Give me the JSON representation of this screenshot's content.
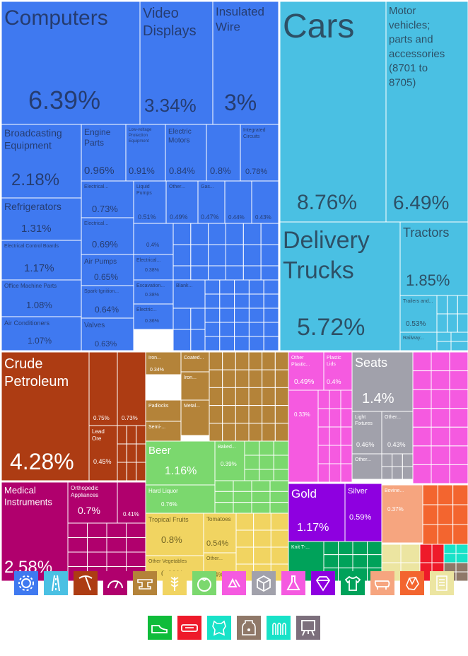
{
  "chart_data": {
    "type": "treemap",
    "title": "",
    "colors": {
      "machines": "#3f79f0",
      "transportation": "#4ac0e3",
      "minerals": "#ad3c13",
      "instruments": "#b0006d",
      "metals": "#b48339",
      "foodstuffs": "#7bd86e",
      "foodstuffs_dark": "#6fd15f",
      "vegetable": "#f1d461",
      "chemicals": "#f55ae0",
      "miscellaneous": "#a1a1ab",
      "precious": "#8e00e0",
      "textiles": "#00a25a",
      "animal": "#f6a57f",
      "stone": "#f3652f",
      "paper": "#ece5a1",
      "footwear": "#0fbc3a",
      "plastics": "#ee1a2a",
      "hides": "#18e2c8",
      "weapons": "#8f7868",
      "arts": "#7c6f7c",
      "mosaic_cream": "#ece8a8"
    },
    "tiles": [
      {
        "label": "Computers",
        "value": "6.39%",
        "group": "machines"
      },
      {
        "label": "Video Displays",
        "value": "3.34%",
        "group": "machines"
      },
      {
        "label": "Insulated Wire",
        "value": "3%",
        "group": "machines"
      },
      {
        "label": "Broadcasting Equipment",
        "value": "2.18%",
        "group": "machines"
      },
      {
        "label": "Engine Parts",
        "value": "0.96%",
        "group": "machines"
      },
      {
        "label": "Low-voltage Protection Equipment",
        "value": "0.91%",
        "group": "machines"
      },
      {
        "label": "Electric Motors",
        "value": "0.84%",
        "group": "machines"
      },
      {
        "label": "",
        "value": "0.8%",
        "group": "machines"
      },
      {
        "label": "Integrated Circuits",
        "value": "0.78%",
        "group": "machines"
      },
      {
        "label": "Refrigerators",
        "value": "1.31%",
        "group": "machines"
      },
      {
        "label": "Electrical Control Boards",
        "value": "1.17%",
        "group": "machines"
      },
      {
        "label": "Office Machine Parts",
        "value": "1.08%",
        "group": "machines"
      },
      {
        "label": "Air Conditioners",
        "value": "1.07%",
        "group": "machines"
      },
      {
        "label": "Electrical...",
        "value": "0.73%",
        "group": "machines"
      },
      {
        "label": "Electrical...",
        "value": "0.69%",
        "group": "machines"
      },
      {
        "label": "Air Pumps",
        "value": "0.65%",
        "group": "machines"
      },
      {
        "label": "Spark-Ignition...",
        "value": "0.64%",
        "group": "machines"
      },
      {
        "label": "Valves",
        "value": "0.63%",
        "group": "machines"
      },
      {
        "label": "Liquid Pumps",
        "value": "0.51%",
        "group": "machines"
      },
      {
        "label": "Other...",
        "value": "0.49%",
        "group": "machines"
      },
      {
        "label": "Gas...",
        "value": "0.47%",
        "group": "machines"
      },
      {
        "label": "",
        "value": "0.44%",
        "group": "machines"
      },
      {
        "label": "",
        "value": "0.43%",
        "group": "machines"
      },
      {
        "label": "",
        "value": "0.4%",
        "group": "machines"
      },
      {
        "label": "Electrical...",
        "value": "0.38%",
        "group": "machines"
      },
      {
        "label": "Excavation...",
        "value": "0.38%",
        "group": "machines"
      },
      {
        "label": "Electric...",
        "value": "0.36%",
        "group": "machines"
      },
      {
        "label": "Blank...",
        "value": "",
        "group": "machines"
      },
      {
        "label": "Cars",
        "value": "8.76%",
        "group": "transportation"
      },
      {
        "label": "Motor vehicles; parts and accessories (8701 to 8705)",
        "value": "6.49%",
        "group": "transportation"
      },
      {
        "label": "Delivery Trucks",
        "value": "5.72%",
        "group": "transportation"
      },
      {
        "label": "Tractors",
        "value": "1.85%",
        "group": "transportation"
      },
      {
        "label": "Trailers and...",
        "value": "0.53%",
        "group": "transportation"
      },
      {
        "label": "Railway...",
        "value": "",
        "group": "transportation"
      },
      {
        "label": "Crude Petroleum",
        "value": "4.28%",
        "group": "minerals"
      },
      {
        "label": "",
        "value": "0.75%",
        "group": "minerals"
      },
      {
        "label": "",
        "value": "0.73%",
        "group": "minerals"
      },
      {
        "label": "Lead Ore",
        "value": "0.45%",
        "group": "minerals"
      },
      {
        "label": "Iron...",
        "value": "0.34%",
        "group": "metals"
      },
      {
        "label": "Coated...",
        "value": "",
        "group": "metals"
      },
      {
        "label": "Iron...",
        "value": "",
        "group": "metals"
      },
      {
        "label": "Padlocks",
        "value": "",
        "group": "metals"
      },
      {
        "label": "Metal...",
        "value": "",
        "group": "metals"
      },
      {
        "label": "Semi-...",
        "value": "",
        "group": "metals"
      },
      {
        "label": "Beer",
        "value": "1.16%",
        "group": "foodstuffs"
      },
      {
        "label": "Baked...",
        "value": "0.39%",
        "group": "foodstuffs"
      },
      {
        "label": "Hard Liquor",
        "value": "0.76%",
        "group": "foodstuffs"
      },
      {
        "label": "Tropical Fruits",
        "value": "0.8%",
        "group": "vegetable"
      },
      {
        "label": "Tomatoes",
        "value": "0.54%",
        "group": "vegetable"
      },
      {
        "label": "Other Vegetables",
        "value": "0.69%",
        "group": "vegetable"
      },
      {
        "label": "Other...",
        "value": "0.4%",
        "group": "vegetable"
      },
      {
        "label": "Other Plastic...",
        "value": "0.49%",
        "group": "chemicals"
      },
      {
        "label": "Plastic Lids",
        "value": "0.4%",
        "group": "chemicals"
      },
      {
        "label": "",
        "value": "0.33%",
        "group": "chemicals"
      },
      {
        "label": "Seats",
        "value": "1.4%",
        "group": "miscellaneous"
      },
      {
        "label": "Light Fixtures",
        "value": "0.46%",
        "group": "miscellaneous"
      },
      {
        "label": "Other...",
        "value": "0.43%",
        "group": "miscellaneous"
      },
      {
        "label": "Other...",
        "value": "",
        "group": "miscellaneous"
      },
      {
        "label": "Medical Instruments",
        "value": "2.58%",
        "group": "instruments"
      },
      {
        "label": "Orthopedic Appliances",
        "value": "0.7%",
        "group": "instruments"
      },
      {
        "label": "",
        "value": "0.41%",
        "group": "instruments"
      },
      {
        "label": "Gold",
        "value": "1.17%",
        "group": "precious"
      },
      {
        "label": "Silver",
        "value": "0.59%",
        "group": "precious"
      },
      {
        "label": "Knit T-...",
        "value": "",
        "group": "textiles"
      },
      {
        "label": "Bovine...",
        "value": "0.37%",
        "group": "animal"
      }
    ],
    "legend": [
      {
        "name": "gear-icon",
        "group": "machines"
      },
      {
        "name": "road-icon",
        "group": "transportation"
      },
      {
        "name": "pickaxe-icon",
        "group": "minerals"
      },
      {
        "name": "gauge-icon",
        "group": "instruments"
      },
      {
        "name": "anvil-icon",
        "group": "metals"
      },
      {
        "name": "wheat-icon",
        "group": "vegetable"
      },
      {
        "name": "tomato-icon",
        "group": "foodstuffs"
      },
      {
        "name": "recycle-icon",
        "group": "chemicals"
      },
      {
        "name": "box-icon",
        "group": "miscellaneous"
      },
      {
        "name": "flask-icon",
        "group": "chemicals"
      },
      {
        "name": "diamond-icon",
        "group": "precious"
      },
      {
        "name": "shirt-icon",
        "group": "textiles"
      },
      {
        "name": "pig-icon",
        "group": "animal"
      },
      {
        "name": "stone-icon",
        "group": "stone"
      },
      {
        "name": "scroll-icon",
        "group": "paper"
      },
      {
        "name": "shoe-icon",
        "group": "footwear"
      },
      {
        "name": "plastic-icon",
        "group": "plastics"
      },
      {
        "name": "hide-icon",
        "group": "hides"
      },
      {
        "name": "jar-icon",
        "group": "weapons"
      },
      {
        "name": "bullets-icon",
        "group": "hides"
      },
      {
        "name": "easel-icon",
        "group": "arts"
      }
    ]
  }
}
